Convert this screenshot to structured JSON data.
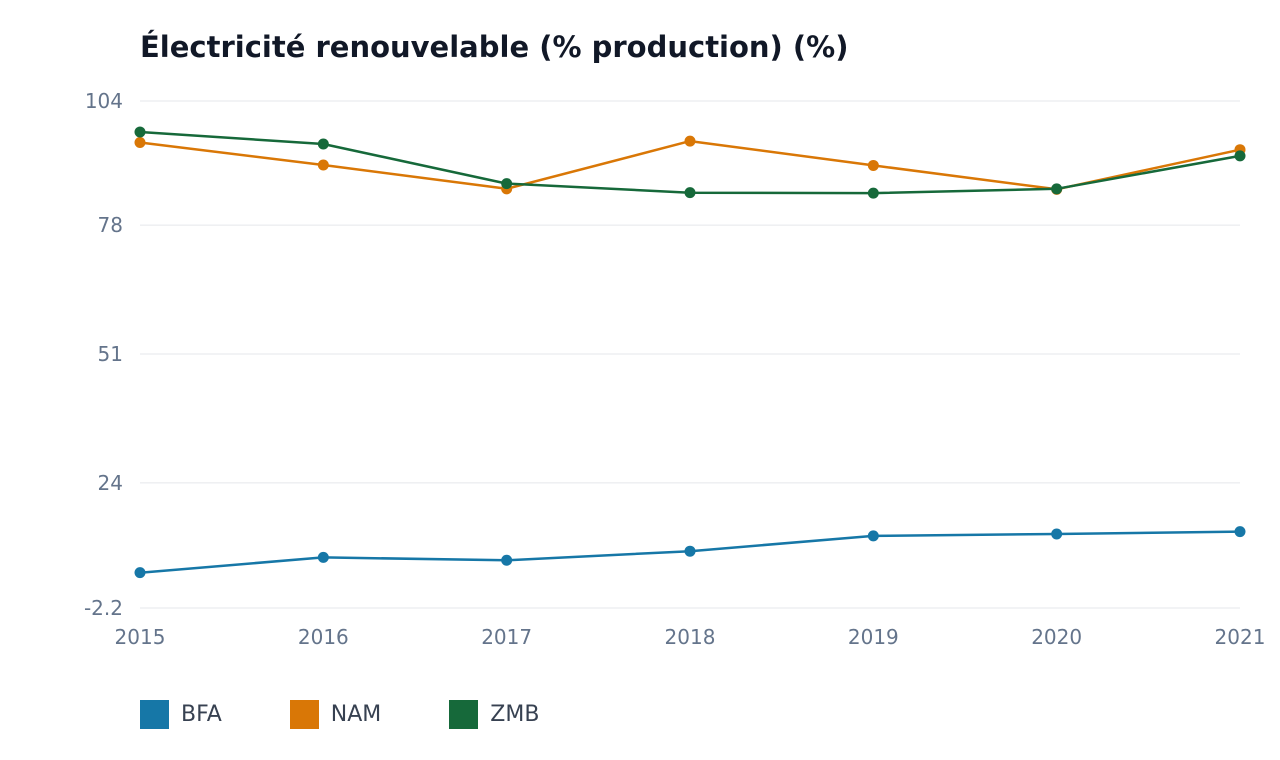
{
  "chart_data": {
    "type": "line",
    "title": "Électricité renouvelable (% production) (%)",
    "xlabel": "",
    "ylabel": "",
    "x": [
      "2015",
      "2016",
      "2017",
      "2018",
      "2019",
      "2020",
      "2021"
    ],
    "y_ticks": [
      "-2.2",
      "24",
      "51",
      "78",
      "104"
    ],
    "ylim": [
      -2.2,
      104
    ],
    "grid": true,
    "legend_position": "bottom-left",
    "series": [
      {
        "name": "BFA",
        "color": "#1677a7",
        "values": [
          5.2,
          8.4,
          7.8,
          9.7,
          12.9,
          13.3,
          13.8
        ]
      },
      {
        "name": "NAM",
        "color": "#d97706",
        "values": [
          95.3,
          90.6,
          85.6,
          95.6,
          90.5,
          85.5,
          93.8
        ]
      },
      {
        "name": "ZMB",
        "color": "#16693a",
        "values": [
          97.5,
          95.0,
          86.7,
          84.8,
          84.7,
          85.6,
          92.5
        ]
      }
    ]
  }
}
